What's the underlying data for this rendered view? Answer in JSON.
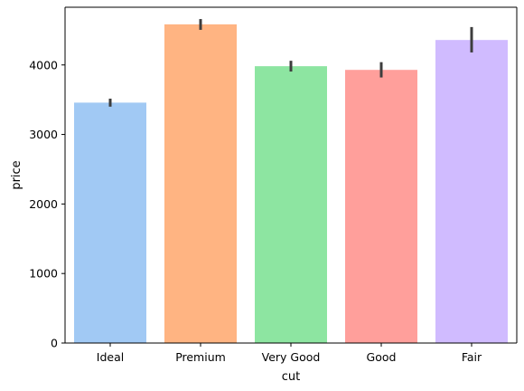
{
  "chart_data": {
    "type": "bar",
    "categories": [
      "Ideal",
      "Premium",
      "Very Good",
      "Good",
      "Fair"
    ],
    "values": [
      3458,
      4584,
      3982,
      3929,
      4359
    ],
    "error_bars": [
      [
        3400,
        3515
      ],
      [
        4505,
        4660
      ],
      [
        3905,
        4060
      ],
      [
        3820,
        4040
      ],
      [
        4180,
        4545
      ]
    ],
    "colors": [
      "#a1c9f4",
      "#ffb482",
      "#8de5a1",
      "#ff9f9b",
      "#d0bbff"
    ],
    "error_color": "#3d3d3d",
    "xlabel": "cut",
    "ylabel": "price",
    "ylim": [
      0,
      4830
    ],
    "yticks": [
      0,
      1000,
      2000,
      3000,
      4000
    ],
    "ytick_labels": [
      "0",
      "1000",
      "2000",
      "3000",
      "4000"
    ],
    "grid": false,
    "legend": "none"
  }
}
